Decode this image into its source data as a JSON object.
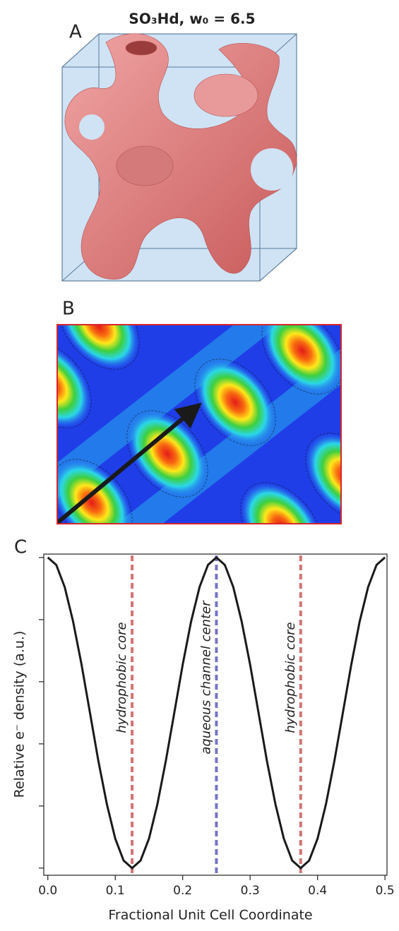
{
  "panel_labels": [
    "A",
    "B",
    "C"
  ],
  "chart_data": {
    "type": "line",
    "title": "SO₃Hd, w₀ = 6.5",
    "x_label": "Fractional Unit Cell Coordinate",
    "y_label": "Relative e⁻ density (a.u.)",
    "x": [
      0,
      0.0125,
      0.025,
      0.0375,
      0.05,
      0.0625,
      0.075,
      0.0875,
      0.1,
      0.1125,
      0.125,
      0.1375,
      0.15,
      0.1625,
      0.175,
      0.1875,
      0.2,
      0.2125,
      0.225,
      0.2375,
      0.25,
      0.2625,
      0.275,
      0.2875,
      0.3,
      0.3125,
      0.325,
      0.3375,
      0.35,
      0.3625,
      0.375,
      0.3875,
      0.4,
      0.4125,
      0.425,
      0.4375,
      0.45,
      0.4625,
      0.475,
      0.4875,
      0.5
    ],
    "series": [
      {
        "color": "#1a1a1a",
        "values": [
          1,
          0.976,
          0.905,
          0.794,
          0.655,
          0.5,
          0.345,
          0.206,
          0.095,
          0.024,
          0,
          0.024,
          0.095,
          0.206,
          0.345,
          0.5,
          0.655,
          0.794,
          0.905,
          0.976,
          1,
          0.976,
          0.905,
          0.794,
          0.655,
          0.5,
          0.345,
          0.206,
          0.095,
          0.024,
          0,
          0.024,
          0.095,
          0.206,
          0.345,
          0.5,
          0.655,
          0.794,
          0.905,
          0.976,
          1
        ]
      }
    ],
    "xlim": [
      -0.006,
      0.503
    ],
    "xticks": [
      {
        "value": 0,
        "label": "0.0"
      },
      0.1,
      0.2,
      0.3,
      0.4,
      0.5
    ],
    "ylim": [
      -0.023,
      1.011
    ],
    "yticks": [
      0,
      0.2,
      0.4,
      0.6,
      0.8,
      1
    ],
    "annotations": [
      {
        "text": "hydrophobic core",
        "x": 0.125,
        "color": "#d27474"
      },
      {
        "text": "aqueous channel center",
        "x": 0.25,
        "color": "#7474c8"
      },
      {
        "text": "hydrophobic core",
        "x": 0.375,
        "color": "#d27474"
      }
    ]
  }
}
